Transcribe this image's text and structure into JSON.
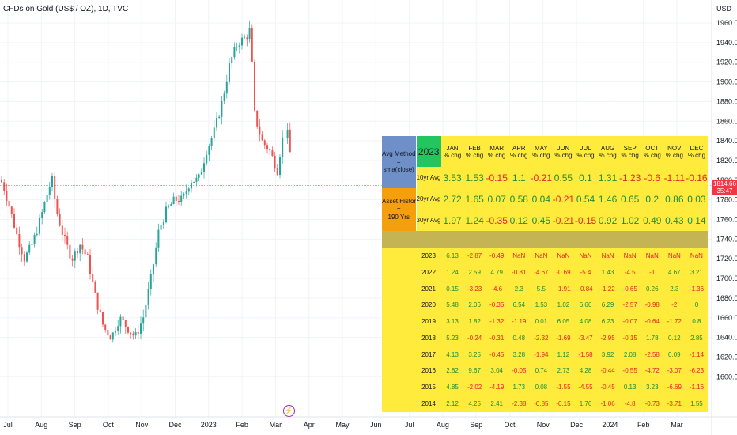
{
  "header": {
    "title": "CFDs on Gold (US$ / OZ), 1D, TVC",
    "currency": "USD"
  },
  "price_axis": {
    "ticks": [
      "1960.00",
      "1940.00",
      "1920.00",
      "1900.00",
      "1880.00",
      "1860.00",
      "1840.00",
      "1820.00",
      "1800.00",
      "1780.00",
      "1760.00",
      "1740.00",
      "1720.00",
      "1700.00",
      "1680.00",
      "1660.00",
      "1640.00",
      "1620.00",
      "1600.00"
    ]
  },
  "time_axis": {
    "ticks": [
      "Jul",
      "Aug",
      "Sep",
      "Oct",
      "Nov",
      "Dec",
      "2023",
      "Feb",
      "Mar",
      "Apr",
      "May",
      "Jun",
      "Jul",
      "Aug",
      "Sep",
      "Oct",
      "Nov",
      "Dec",
      "2024",
      "Feb",
      "Mar"
    ]
  },
  "last_price": {
    "value": "1814.66",
    "countdown": "35:47"
  },
  "colors": {
    "up": "#26a69a",
    "down": "#ef5350",
    "table_bg": "#ffeb3b",
    "method_bg": "#6f8fc9",
    "history_bg": "#f59f0d",
    "year_badge": "#22c55e"
  },
  "events": {
    "icon": "lightning-icon",
    "glyph": "⚡"
  },
  "seasonality": {
    "method_label": [
      "Avg Method",
      "=",
      "sma(close)"
    ],
    "history_label": [
      "Asset History",
      "=",
      "190 Yrs"
    ],
    "current_year": "2023",
    "months": [
      "JAN",
      "FEB",
      "MAR",
      "APR",
      "MAY",
      "JUN",
      "JUL",
      "AUG",
      "SEP",
      "OCT",
      "NOV",
      "DEC"
    ],
    "chg_label": "% chg",
    "averages": [
      {
        "label": "10yr Avg:",
        "values": [
          "3.53",
          "1.53",
          "-0.15",
          "1.1",
          "-0.21",
          "0.55",
          "0.1",
          "1.31",
          "-1.23",
          "-0.6",
          "-1.11",
          "-0.16"
        ]
      },
      {
        "label": "20yr Avg:",
        "values": [
          "2.72",
          "1.65",
          "0.07",
          "0.58",
          "0.04",
          "-0.21",
          "0.54",
          "1.46",
          "0.65",
          "0.2",
          "0.86",
          "0.03"
        ]
      },
      {
        "label": "30yr Avg:",
        "values": [
          "1.97",
          "1.24",
          "-0.35",
          "0.12",
          "0.45",
          "-0.21",
          "-0.15",
          "0.92",
          "1.02",
          "0.49",
          "0.43",
          "0.14"
        ]
      }
    ],
    "years": [
      {
        "year": "2023",
        "values": [
          "6.13",
          "-2.87",
          "-0.49",
          "NaN",
          "NaN",
          "NaN",
          "NaN",
          "NaN",
          "NaN",
          "NaN",
          "NaN",
          "NaN"
        ]
      },
      {
        "year": "2022",
        "values": [
          "1.24",
          "2.59",
          "4.79",
          "-0.81",
          "-4.67",
          "-0.69",
          "-5.4",
          "1.43",
          "-4.5",
          "-1",
          "4.67",
          "3.21"
        ]
      },
      {
        "year": "2021",
        "values": [
          "0.15",
          "-3.23",
          "-4.6",
          "2.3",
          "5.5",
          "-1.91",
          "-0.84",
          "-1.22",
          "-0.65",
          "0.26",
          "2.3",
          "-1.36"
        ]
      },
      {
        "year": "2020",
        "values": [
          "5.48",
          "2.06",
          "-0.35",
          "6.54",
          "1.53",
          "1.02",
          "6.66",
          "6.29",
          "-2.57",
          "-0.98",
          "-2",
          "0"
        ]
      },
      {
        "year": "2019",
        "values": [
          "3.13",
          "1.82",
          "-1.32",
          "-1.19",
          "0.01",
          "6.05",
          "4.08",
          "6.23",
          "-0.07",
          "-0.64",
          "-1.72",
          "0.8"
        ]
      },
      {
        "year": "2018",
        "values": [
          "5.23",
          "-0.24",
          "-0.31",
          "0.48",
          "-2.32",
          "-1.69",
          "-3.47",
          "-2.95",
          "-0.15",
          "1.78",
          "0.12",
          "2.85"
        ]
      },
      {
        "year": "2017",
        "values": [
          "4.13",
          "3.25",
          "-0.45",
          "3.28",
          "-1.94",
          "1.12",
          "-1.58",
          "3.92",
          "2.08",
          "-2.58",
          "0.09",
          "-1.14"
        ]
      },
      {
        "year": "2016",
        "values": [
          "2.82",
          "9.67",
          "3.04",
          "-0.05",
          "0.74",
          "2.73",
          "4.28",
          "-0.44",
          "-0.55",
          "-4.72",
          "-3.07",
          "-6.23"
        ]
      },
      {
        "year": "2015",
        "values": [
          "4.85",
          "-2.02",
          "-4.19",
          "1.73",
          "0.08",
          "-1.55",
          "-4.55",
          "-0.45",
          "0.13",
          "3.23",
          "-6.69",
          "-1.16"
        ]
      },
      {
        "year": "2014",
        "values": [
          "2.12",
          "4.25",
          "2.41",
          "-2.38",
          "-0.85",
          "-0.15",
          "1.76",
          "-1.06",
          "-4.8",
          "-0.73",
          "-3.71",
          "1.55"
        ]
      }
    ]
  }
}
